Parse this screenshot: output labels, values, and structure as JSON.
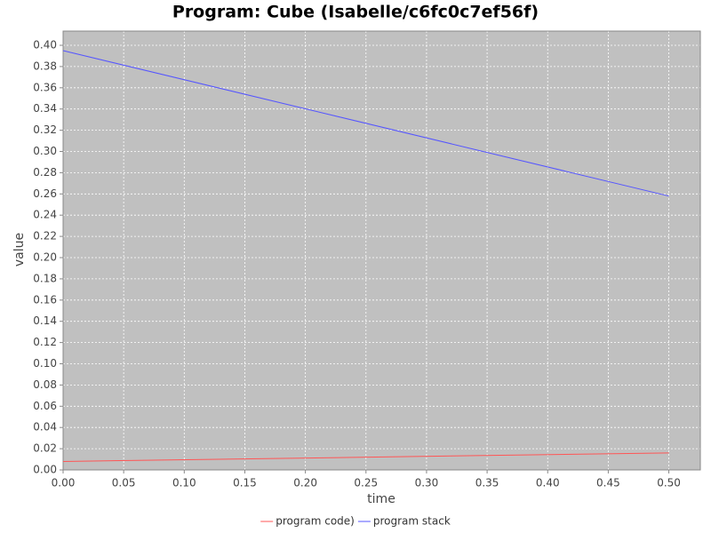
{
  "chart_data": {
    "type": "line",
    "title": "Program: Cube (Isabelle/c6fc0c7ef56f)",
    "x_label": "time",
    "y_label": "value",
    "x": [
      0,
      0.5
    ],
    "series": [
      {
        "name": "program code)",
        "color": "#ff5555",
        "values": [
          0.008,
          0.016
        ]
      },
      {
        "name": "program stack",
        "color": "#5555ff",
        "values": [
          0.395,
          0.258
        ]
      }
    ],
    "xlim": [
      0,
      0.526
    ],
    "ylim": [
      0,
      0.4134
    ],
    "xticks": [
      {
        "value": 0,
        "label": "0.00"
      },
      {
        "value": 0.05,
        "label": "0.05"
      },
      {
        "value": 0.1,
        "label": "0.10"
      },
      {
        "value": 0.15,
        "label": "0.15"
      },
      {
        "value": 0.2,
        "label": "0.20"
      },
      {
        "value": 0.25,
        "label": "0.25"
      },
      {
        "value": 0.3,
        "label": "0.30"
      },
      {
        "value": 0.35,
        "label": "0.35"
      },
      {
        "value": 0.4,
        "label": "0.40"
      },
      {
        "value": 0.45,
        "label": "0.45"
      },
      {
        "value": 0.5,
        "label": "0.50"
      }
    ],
    "yticks": [
      {
        "value": 0,
        "label": "0.00"
      },
      {
        "value": 0.02,
        "label": "0.02"
      },
      {
        "value": 0.04,
        "label": "0.04"
      },
      {
        "value": 0.06,
        "label": "0.06"
      },
      {
        "value": 0.08,
        "label": "0.08"
      },
      {
        "value": 0.1,
        "label": "0.10"
      },
      {
        "value": 0.12,
        "label": "0.12"
      },
      {
        "value": 0.14,
        "label": "0.14"
      },
      {
        "value": 0.16,
        "label": "0.16"
      },
      {
        "value": 0.18,
        "label": "0.18"
      },
      {
        "value": 0.2,
        "label": "0.20"
      },
      {
        "value": 0.22,
        "label": "0.22"
      },
      {
        "value": 0.24,
        "label": "0.24"
      },
      {
        "value": 0.26,
        "label": "0.26"
      },
      {
        "value": 0.28,
        "label": "0.28"
      },
      {
        "value": 0.3,
        "label": "0.30"
      },
      {
        "value": 0.32,
        "label": "0.32"
      },
      {
        "value": 0.34,
        "label": "0.34"
      },
      {
        "value": 0.36,
        "label": "0.36"
      },
      {
        "value": 0.38,
        "label": "0.38"
      },
      {
        "value": 0.4,
        "label": "0.40"
      }
    ],
    "grid": true,
    "legend": "bottom"
  }
}
